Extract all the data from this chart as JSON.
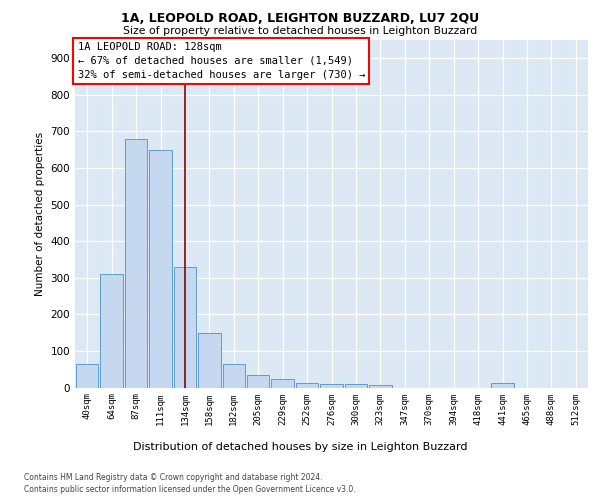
{
  "title1": "1A, LEOPOLD ROAD, LEIGHTON BUZZARD, LU7 2QU",
  "title2": "Size of property relative to detached houses in Leighton Buzzard",
  "xlabel": "Distribution of detached houses by size in Leighton Buzzard",
  "ylabel": "Number of detached properties",
  "categories": [
    "40sqm",
    "64sqm",
    "87sqm",
    "111sqm",
    "134sqm",
    "158sqm",
    "182sqm",
    "205sqm",
    "229sqm",
    "252sqm",
    "276sqm",
    "300sqm",
    "323sqm",
    "347sqm",
    "370sqm",
    "394sqm",
    "418sqm",
    "441sqm",
    "465sqm",
    "488sqm",
    "512sqm"
  ],
  "values": [
    65,
    310,
    680,
    650,
    330,
    150,
    65,
    35,
    22,
    12,
    10,
    10,
    8,
    0,
    0,
    0,
    0,
    12,
    0,
    0,
    0
  ],
  "bar_color": "#c5d8f0",
  "bar_edge_color": "#5b9bd5",
  "property_line_x": 4.0,
  "annotation_line1": "1A LEOPOLD ROAD: 128sqm",
  "annotation_line2": "← 67% of detached houses are smaller (1,549)",
  "annotation_line3": "32% of semi-detached houses are larger (730) →",
  "ylim": [
    0,
    950
  ],
  "yticks": [
    0,
    100,
    200,
    300,
    400,
    500,
    600,
    700,
    800,
    900
  ],
  "ax_facecolor": "#dde8f5",
  "grid_color": "#ffffff",
  "fig_facecolor": "#ffffff",
  "footer1": "Contains HM Land Registry data © Crown copyright and database right 2024.",
  "footer2": "Contains public sector information licensed under the Open Government Licence v3.0."
}
